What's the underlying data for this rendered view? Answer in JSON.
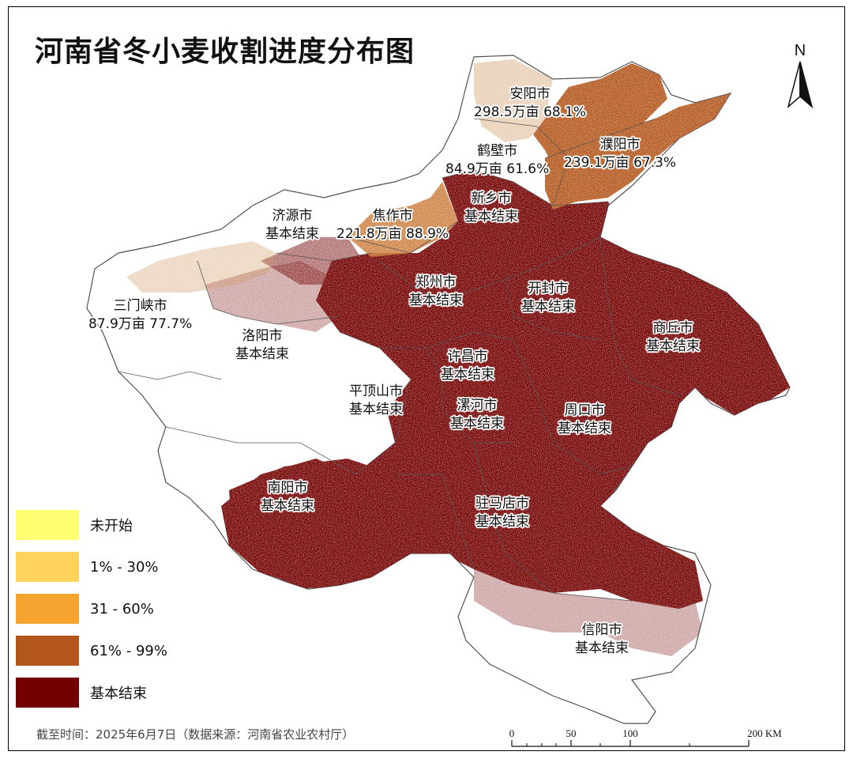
{
  "title": "河南省冬小麦收割进度分布图",
  "north_label": "N",
  "footnote": "截至时间：2025年6月7日（数据来源：河南省农业农村厅）",
  "scale": {
    "ticks": [
      "0",
      "50",
      "100",
      "200 KM"
    ]
  },
  "legend": [
    {
      "label": "未开始",
      "color": "#FFFF73"
    },
    {
      "label": "1% - 30%",
      "color": "#FFD35C"
    },
    {
      "label": "31 - 60%",
      "color": "#F5A52F"
    },
    {
      "label": "61% - 99%",
      "color": "#B3561B"
    },
    {
      "label": "基本结束",
      "color": "#730000"
    }
  ],
  "cities": {
    "anyang": {
      "name": "安阳市",
      "status": "298.5万亩 68.1%"
    },
    "hebi": {
      "name": "鹤壁市",
      "status": "84.9万亩 61.6%"
    },
    "puyang": {
      "name": "濮阳市",
      "status": "239.1万亩 67.3%"
    },
    "xinxiang": {
      "name": "新乡市",
      "status": "基本结束"
    },
    "jiyuan": {
      "name": "济源市",
      "status": "基本结束"
    },
    "jiaozuo": {
      "name": "焦作市",
      "status": "221.8万亩 88.9%"
    },
    "zhengzhou": {
      "name": "郑州市",
      "status": "基本结束"
    },
    "kaifeng": {
      "name": "开封市",
      "status": "基本结束"
    },
    "sanmenxia": {
      "name": "三门峡市",
      "status": "87.9万亩 77.7%"
    },
    "luoyang": {
      "name": "洛阳市",
      "status": "基本结束"
    },
    "shangqiu": {
      "name": "商丘市",
      "status": "基本结束"
    },
    "xuchang": {
      "name": "许昌市",
      "status": "基本结束"
    },
    "pingdingshan": {
      "name": "平顶山市",
      "status": "基本结束"
    },
    "luohe": {
      "name": "漯河市",
      "status": "基本结束"
    },
    "zhoukou": {
      "name": "周口市",
      "status": "基本结束"
    },
    "nanyang": {
      "name": "南阳市",
      "status": "基本结束"
    },
    "zhumadian": {
      "name": "驻马店市",
      "status": "基本结束"
    },
    "xinyang": {
      "name": "信阳市",
      "status": "基本结束"
    }
  }
}
